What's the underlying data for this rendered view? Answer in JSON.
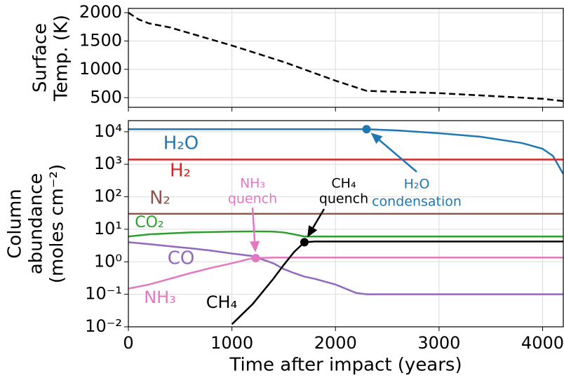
{
  "chart_data": [
    {
      "type": "line",
      "ylabel": [
        "Surface",
        "Temp. (K)"
      ],
      "x": [
        0,
        100,
        200,
        400,
        1000,
        1500,
        2000,
        2300,
        3000,
        4000,
        4200
      ],
      "series": [
        {
          "color": "#000000",
          "dashed": true,
          "values": [
            2000,
            1880,
            1810,
            1740,
            1420,
            1130,
            800,
            620,
            580,
            480,
            440
          ]
        }
      ],
      "xlim": [
        0,
        4200
      ],
      "xticks": [
        0,
        1000,
        2000,
        3000,
        4000
      ],
      "ylim": [
        330,
        2075
      ],
      "yticks": [
        500,
        1000,
        1500,
        2000
      ],
      "grid": true
    },
    {
      "type": "line",
      "log_y": true,
      "xlabel": "Time after impact (years)",
      "ylabel": [
        "Column",
        "abundance",
        "(moles cm⁻²)"
      ],
      "x": [
        0,
        200,
        400,
        600,
        800,
        1000,
        1200,
        1400,
        1500,
        1600,
        1700,
        1800,
        2000,
        2200,
        2300,
        2600,
        3000,
        3400,
        3800,
        4000,
        4100,
        4200
      ],
      "series": [
        {
          "name": "H₂O",
          "color": "#1f77b4",
          "values": [
            12000,
            12000,
            12000,
            12000,
            12000,
            12000,
            12000,
            12000,
            12000,
            12000,
            12000,
            12000,
            12000,
            12000,
            12000,
            11000,
            9000,
            7000,
            4500,
            3000,
            1800,
            500
          ]
        },
        {
          "name": "H₂",
          "color": "#d62728",
          "values": [
            1400,
            1400,
            1400,
            1400,
            1400,
            1400,
            1400,
            1400,
            1400,
            1400,
            1400,
            1400,
            1400,
            1400,
            1400,
            1400,
            1400,
            1400,
            1400,
            1400,
            1400,
            1400
          ]
        },
        {
          "name": "N₂",
          "color": "#8c564b",
          "values": [
            30,
            30,
            30,
            30,
            30,
            30,
            30,
            30,
            30,
            30,
            30,
            30,
            30,
            30,
            30,
            30,
            30,
            30,
            30,
            30,
            30,
            30
          ]
        },
        {
          "name": "CO₂",
          "color": "#2ca02c",
          "values": [
            6,
            7,
            7.5,
            8,
            8.2,
            8.5,
            8.6,
            8.5,
            8,
            7,
            6,
            6,
            6,
            6,
            6,
            6,
            6,
            6,
            6,
            6,
            6,
            6
          ]
        },
        {
          "name": "CO",
          "color": "#9467bd",
          "values": [
            4,
            3.5,
            3,
            2.6,
            2.2,
            1.8,
            1.5,
            0.9,
            0.6,
            0.45,
            0.35,
            0.3,
            0.2,
            0.11,
            0.1,
            0.1,
            0.1,
            0.1,
            0.1,
            0.1,
            0.1,
            0.1
          ]
        },
        {
          "name": "NH₃",
          "color": "#e377c2",
          "values": [
            0.15,
            0.2,
            0.3,
            0.45,
            0.65,
            0.9,
            1.3,
            1.35,
            1.35,
            1.35,
            1.35,
            1.35,
            1.35,
            1.35,
            1.35,
            1.35,
            1.35,
            1.35,
            1.35,
            1.35,
            1.35,
            1.35
          ]
        },
        {
          "name": "CH₄",
          "color": "#000000",
          "values": [
            null,
            null,
            null,
            null,
            null,
            0.012,
            0.05,
            0.3,
            0.8,
            2,
            4,
            4.2,
            4.2,
            4.2,
            4.2,
            4.2,
            4.2,
            4.2,
            4.2,
            4.2,
            4.2,
            4.2
          ]
        }
      ],
      "annotations": [
        {
          "text": [
            "H₂O",
            "condensation"
          ],
          "color": "#1f77b4",
          "x": 2300,
          "y": 12000
        },
        {
          "text": [
            "NH₃",
            "quench"
          ],
          "color": "#e377c2",
          "x": 1230,
          "y": 1.3
        },
        {
          "text": [
            "CH₄",
            "quench"
          ],
          "color": "#000000",
          "x": 1700,
          "y": 4
        }
      ],
      "xlim": [
        0,
        4200
      ],
      "xticks": [
        0,
        1000,
        2000,
        3000,
        4000
      ],
      "ylim": [
        0.01,
        22000
      ],
      "yticks": [
        {
          "value": 0.01,
          "label": "10⁻²"
        },
        {
          "value": 0.1,
          "label": "10⁻¹"
        },
        {
          "value": 1,
          "label": "10⁰"
        },
        {
          "value": 10,
          "label": "10¹"
        },
        {
          "value": 100,
          "label": "10²"
        },
        {
          "value": 1000,
          "label": "10³"
        },
        {
          "value": 10000,
          "label": "10⁴"
        }
      ],
      "grid": true
    }
  ]
}
